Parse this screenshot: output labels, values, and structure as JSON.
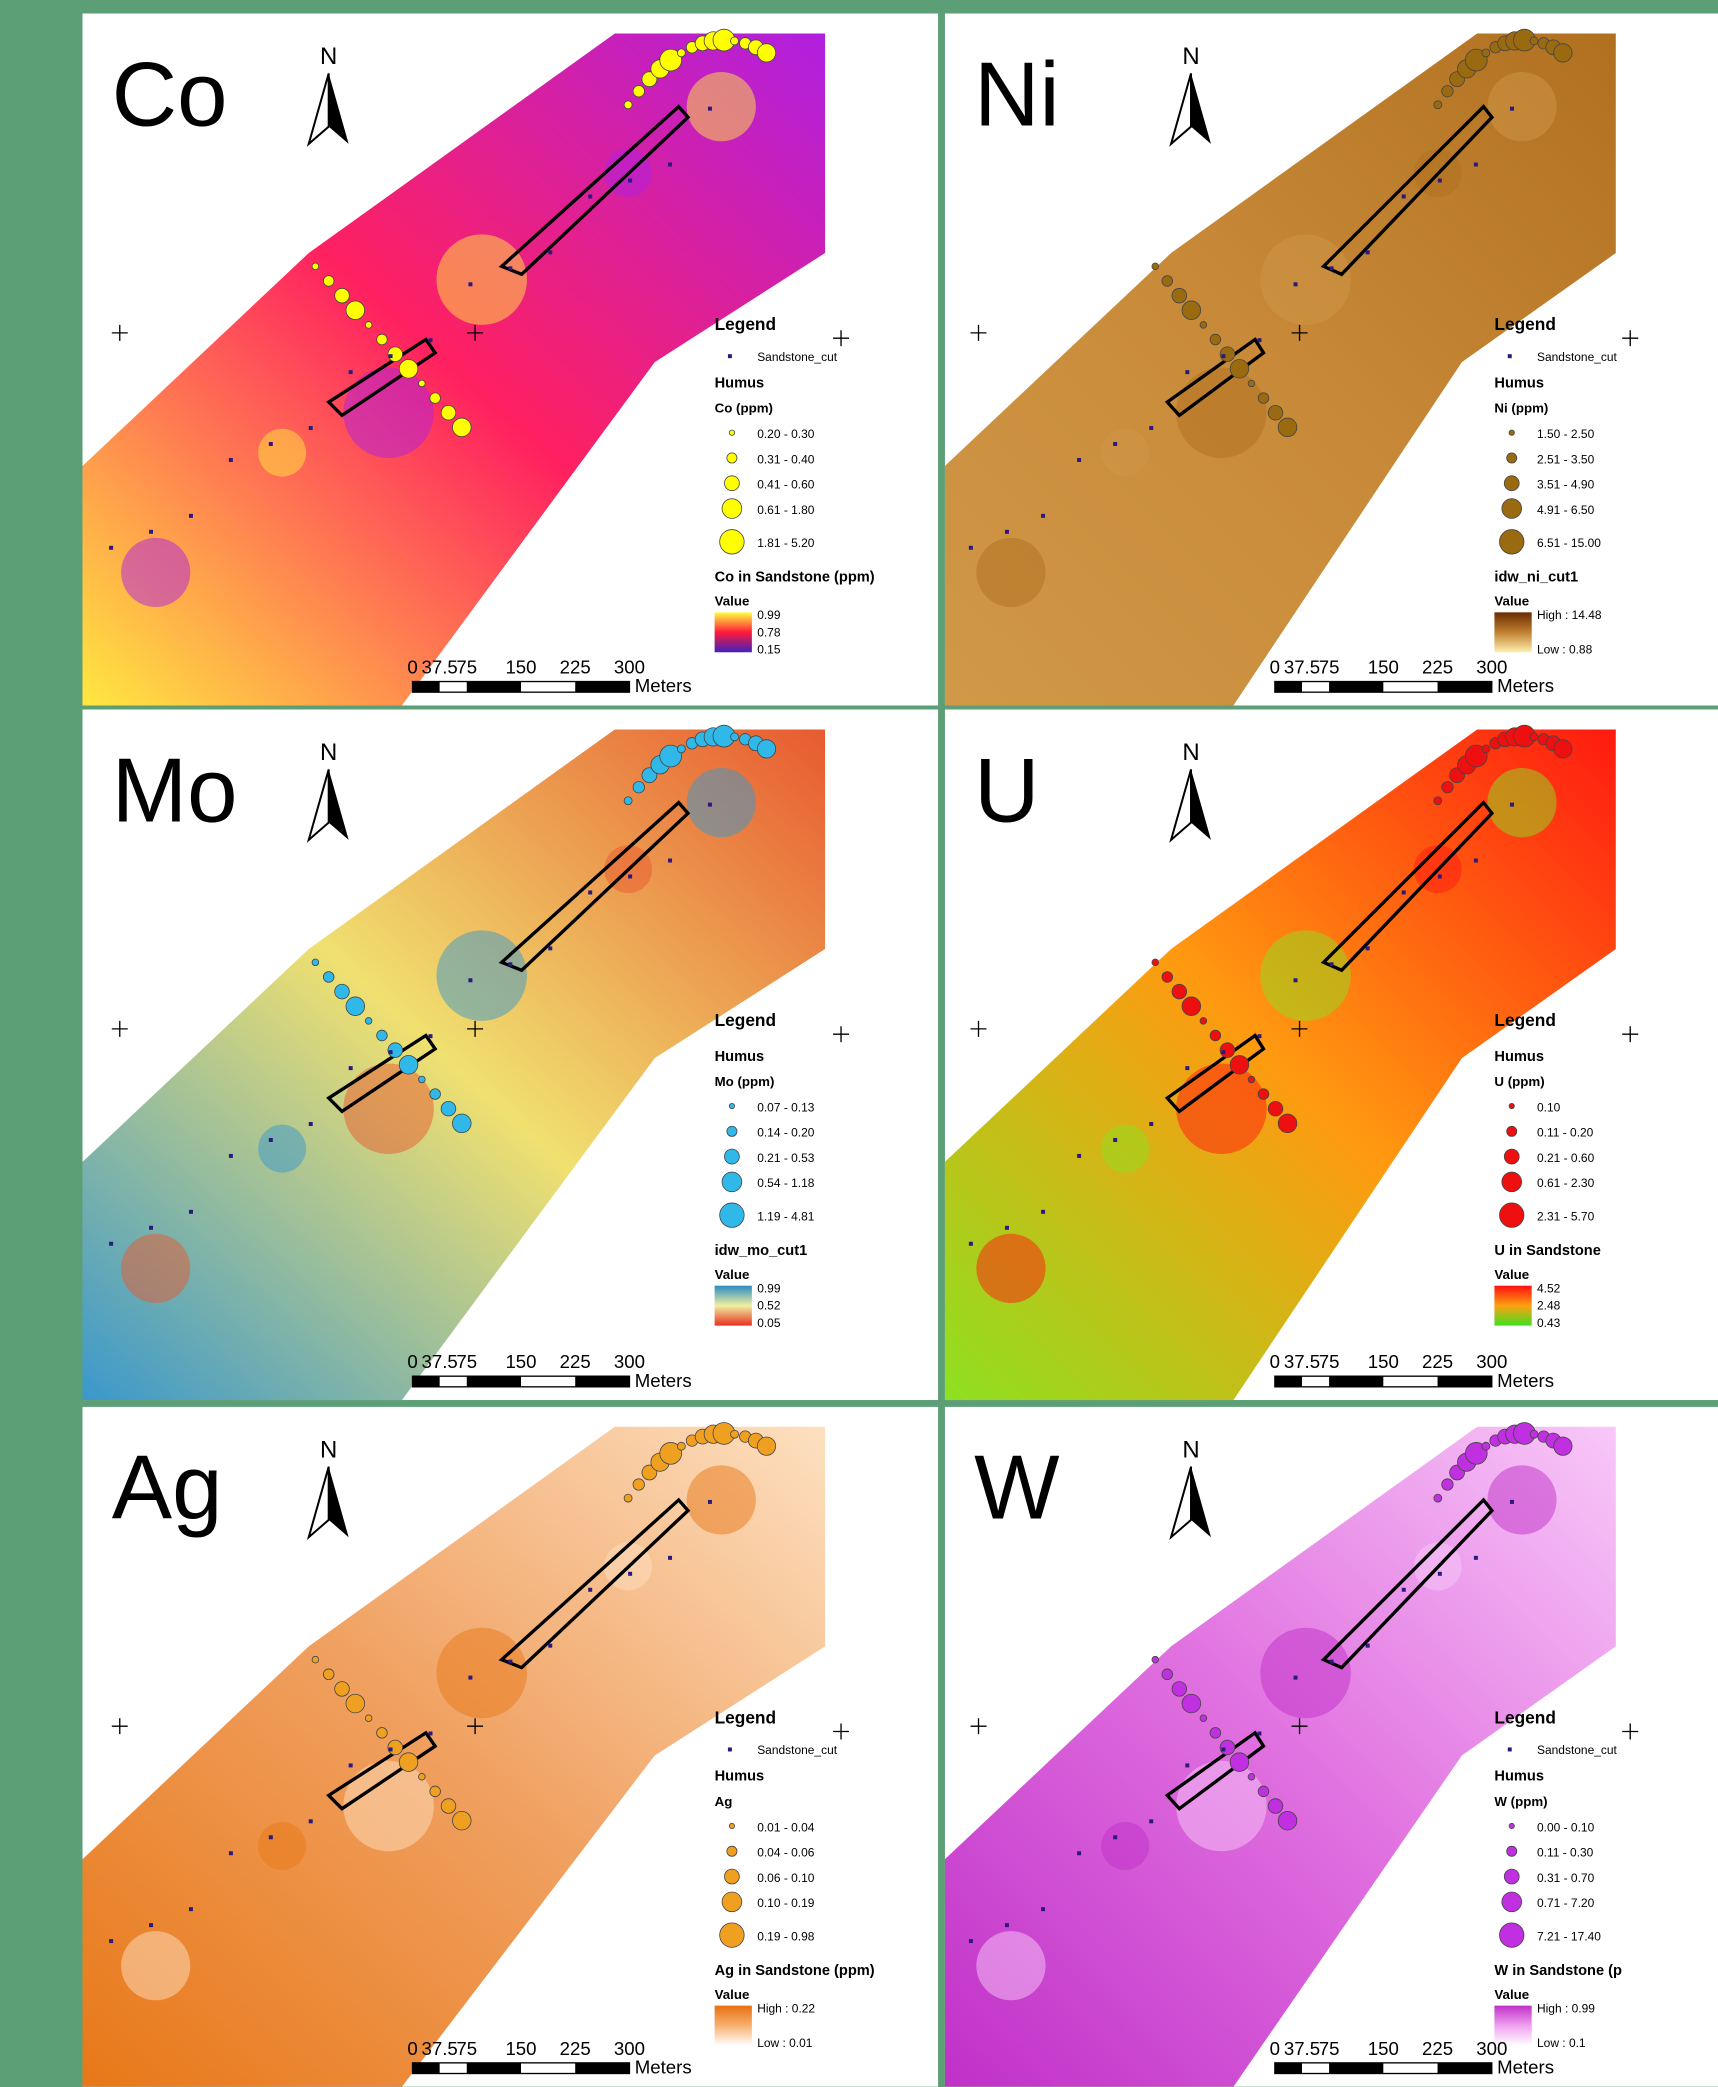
{
  "panels": [
    {
      "element": "Co",
      "north": "N",
      "legend": {
        "title": "Legend",
        "sandstone": "Sandstone_cut",
        "humus": "Humus",
        "field": "Co (ppm)",
        "classes": [
          "0.20 - 0.30",
          "0.31 - 0.40",
          "0.41 - 0.60",
          "0.61 - 1.80",
          "1.81 - 5.20"
        ],
        "raster_title": "Co in Sandstone (ppm)",
        "value_title": "Value",
        "ramp_labels": [
          "0.99",
          "0.78",
          "0.15"
        ]
      },
      "scale_labels": [
        "0",
        "37.5",
        "75",
        "150",
        "225",
        "300"
      ],
      "scale_unit": "Meters",
      "point_color": "#ffff00",
      "ramp_colors": [
        "#ffff40",
        "#ff1a3a",
        "#4020c0"
      ],
      "map_colors": [
        "#b020e0",
        "#ff2060",
        "#ffe840"
      ]
    },
    {
      "element": "Ni",
      "north": "N",
      "legend": {
        "title": "Legend",
        "sandstone": "Sandstone_cut",
        "humus": "Humus",
        "field": "Ni (ppm)",
        "classes": [
          "1.50 - 2.50",
          "2.51 - 3.50",
          "3.51 - 4.90",
          "4.91 - 6.50",
          "6.51 - 15.00"
        ],
        "raster_title": "idw_ni_cut1",
        "value_title": "Value",
        "ramp_labels": [
          "High : 14.48",
          "Low : 0.88"
        ]
      },
      "scale_labels": [
        "0",
        "37.5",
        "75",
        "150",
        "225",
        "300"
      ],
      "scale_unit": "Meters",
      "point_color": "#9a6a10",
      "ramp_colors": [
        "#6a2a00",
        "#c08030",
        "#fff0b0"
      ],
      "map_colors": [
        "#b07020",
        "#c88a38",
        "#d09848"
      ]
    },
    {
      "element": "Mo",
      "north": "N",
      "legend": {
        "title": "Legend",
        "humus": "Humus",
        "field": "Mo (ppm)",
        "classes": [
          "0.07 - 0.13",
          "0.14 - 0.20",
          "0.21 - 0.53",
          "0.54 - 1.18",
          "1.19 - 4.81"
        ],
        "raster_title": "idw_mo_cut1",
        "value_title": "Value",
        "ramp_labels": [
          "0.99",
          "0.52",
          "0.05"
        ]
      },
      "scale_labels": [
        "0",
        "37.5",
        "75",
        "150",
        "225",
        "300"
      ],
      "scale_unit": "Meters",
      "point_color": "#30b8e8",
      "ramp_colors": [
        "#2b8cc4",
        "#f0f0a0",
        "#e83020"
      ],
      "map_colors": [
        "#e85a30",
        "#f0e070",
        "#3a98cc"
      ]
    },
    {
      "element": "U",
      "north": "N",
      "legend": {
        "title": "Legend",
        "humus": "Humus",
        "field": "U (ppm)",
        "classes": [
          "0.10",
          "0.11 - 0.20",
          "0.21 - 0.60",
          "0.61 - 2.30",
          "2.31 - 5.70"
        ],
        "raster_title": "U in Sandstone",
        "value_title": "Value",
        "ramp_labels": [
          "4.52",
          "2.48",
          "0.43"
        ]
      },
      "scale_labels": [
        "0",
        "37.5",
        "75",
        "150",
        "225",
        "300"
      ],
      "scale_unit": "Meters",
      "point_color": "#ee1010",
      "ramp_colors": [
        "#ff1010",
        "#ffa010",
        "#40e020"
      ],
      "map_colors": [
        "#ff1a10",
        "#ff9a10",
        "#8ee020"
      ]
    },
    {
      "element": "Ag",
      "north": "N",
      "legend": {
        "title": "Legend",
        "sandstone": "Sandstone_cut",
        "humus": "Humus",
        "field": "Ag",
        "classes": [
          "0.01 - 0.04",
          "0.04 - 0.06",
          "0.06 - 0.10",
          "0.10 - 0.19",
          "0.19 - 0.98"
        ],
        "raster_title": "Ag in Sandstone (ppm)",
        "value_title": "Value",
        "ramp_labels": [
          "High : 0.22",
          "Low : 0.01"
        ]
      },
      "scale_labels": [
        "0",
        "37.5",
        "75",
        "150",
        "225",
        "300"
      ],
      "scale_unit": "Meters",
      "point_color": "#f0a020",
      "ramp_colors": [
        "#e87010",
        "#f8b070",
        "#ffffff"
      ],
      "map_colors": [
        "#fde0c0",
        "#f0a060",
        "#e87818"
      ]
    },
    {
      "element": "W",
      "north": "N",
      "legend": {
        "title": "Legend",
        "sandstone": "Sandstone_cut",
        "humus": "Humus",
        "field": "W (ppm)",
        "classes": [
          "0.00 - 0.10",
          "0.11 - 0.30",
          "0.31 - 0.70",
          "0.71 - 7.20",
          "7.21 - 17.40"
        ],
        "raster_title": "W in Sandstone (p",
        "value_title": "Value",
        "ramp_labels": [
          "High : 0.99",
          "Low : 0.1"
        ]
      },
      "scale_labels": [
        "0",
        "37.5",
        "75",
        "150",
        "225",
        "300"
      ],
      "scale_unit": "Meters",
      "point_color": "#c030e0",
      "ramp_colors": [
        "#c030c8",
        "#f0a0f0",
        "#ffffff"
      ],
      "map_colors": [
        "#f8c8f8",
        "#e070e0",
        "#c030c8"
      ]
    }
  ]
}
